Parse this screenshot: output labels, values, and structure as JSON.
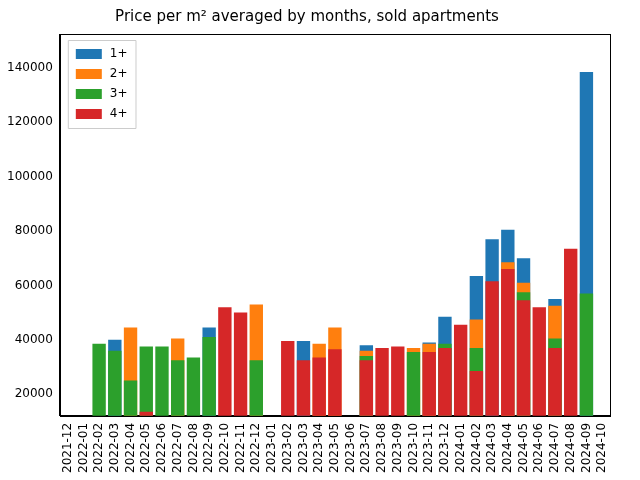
{
  "chart_data": {
    "type": "bar",
    "title": "Price per m² averaged by months, sold apartments",
    "categories": [
      "2021-12",
      "2022-01",
      "2022-02",
      "2022-03",
      "2022-04",
      "2022-05",
      "2022-06",
      "2022-07",
      "2022-08",
      "2022-09",
      "2022-10",
      "2022-11",
      "2022-12",
      "2023-01",
      "2023-02",
      "2023-03",
      "2023-04",
      "2023-05",
      "2023-06",
      "2023-07",
      "2023-08",
      "2023-09",
      "2023-10",
      "2023-11",
      "2023-12",
      "2024-01",
      "2024-02",
      "2024-03",
      "2024-04",
      "2024-05",
      "2024-06",
      "2024-07",
      "2024-08",
      "2024-09",
      "2024-10"
    ],
    "series": [
      {
        "name": "1+",
        "color": "#1f77b4",
        "values": [
          null,
          null,
          null,
          40000,
          null,
          null,
          null,
          null,
          null,
          44500,
          null,
          null,
          null,
          null,
          null,
          39500,
          null,
          null,
          null,
          38000,
          null,
          null,
          null,
          39000,
          48500,
          null,
          63500,
          77000,
          80500,
          70000,
          null,
          55000,
          null,
          138500,
          null
        ]
      },
      {
        "name": "2+",
        "color": "#ff7f0e",
        "values": [
          null,
          null,
          null,
          null,
          44500,
          null,
          null,
          40500,
          null,
          null,
          null,
          null,
          53000,
          null,
          null,
          null,
          38500,
          44500,
          null,
          36000,
          null,
          null,
          37000,
          38500,
          null,
          null,
          47500,
          null,
          68500,
          61000,
          null,
          52500,
          null,
          null,
          null
        ]
      },
      {
        "name": "3+",
        "color": "#2ca02c",
        "values": [
          null,
          null,
          38500,
          36000,
          25000,
          37500,
          37500,
          32500,
          33500,
          41000,
          null,
          null,
          32500,
          null,
          null,
          null,
          null,
          null,
          null,
          34000,
          null,
          null,
          35500,
          null,
          38500,
          null,
          37000,
          null,
          null,
          57500,
          null,
          40500,
          null,
          57000,
          null
        ]
      },
      {
        "name": "4+",
        "color": "#d62728",
        "values": [
          null,
          null,
          null,
          null,
          null,
          13500,
          null,
          null,
          null,
          null,
          52000,
          50000,
          null,
          null,
          39500,
          32500,
          33500,
          36500,
          null,
          32500,
          37000,
          37500,
          null,
          35500,
          37000,
          45500,
          28500,
          61500,
          66000,
          54500,
          52000,
          37000,
          73500,
          null,
          null
        ]
      }
    ],
    "ylim": [
      12000,
      152500
    ],
    "yticks": [
      20000,
      40000,
      60000,
      80000,
      100000,
      120000,
      140000
    ],
    "grid": false,
    "legend": "upper left"
  }
}
